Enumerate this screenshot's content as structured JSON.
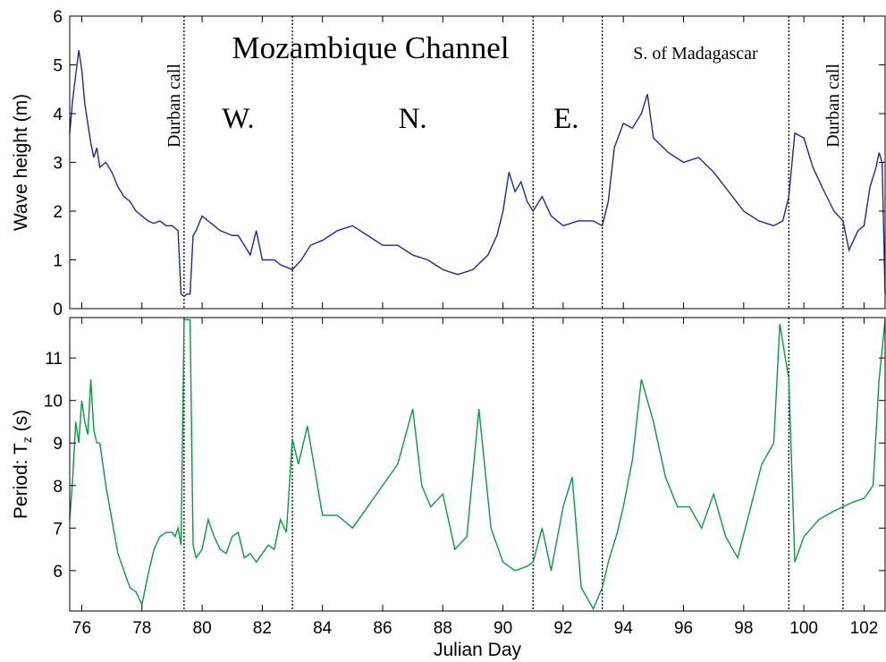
{
  "figure": {
    "xlabel": "Julian Day",
    "annotations": {
      "title": "Mozambique Channel",
      "w": "W.",
      "n": "N.",
      "e": "E.",
      "madagascar": "S. of Madagascar",
      "durban_left": "Durban call",
      "durban_right": "Durban call"
    }
  },
  "chart_data": [
    {
      "type": "line",
      "title": "",
      "xlabel": "",
      "ylabel": "Wave height (m)",
      "xlim": [
        75.6,
        102.7
      ],
      "ylim": [
        0,
        6
      ],
      "xticks": [
        76,
        78,
        80,
        82,
        84,
        86,
        88,
        90,
        92,
        94,
        96,
        98,
        100,
        102
      ],
      "yticks": [
        0,
        1,
        2,
        3,
        4,
        5,
        6
      ],
      "color": "#1f2a8f",
      "vlines": [
        79.4,
        83.0,
        91.0,
        93.3,
        99.5,
        101.3
      ],
      "series": [
        {
          "x": [
            75.6,
            75.7,
            75.8,
            75.9,
            76.0,
            76.1,
            76.2,
            76.3,
            76.4,
            76.5,
            76.6,
            76.8,
            77.0,
            77.2,
            77.4,
            77.6,
            77.8,
            78.0,
            78.2,
            78.4,
            78.6,
            78.8,
            79.0,
            79.2,
            79.3,
            79.4,
            79.5,
            79.6,
            79.7,
            79.8,
            80.0,
            80.2,
            80.4,
            80.6,
            80.8,
            81.0,
            81.2,
            81.4,
            81.6,
            81.8,
            82.0,
            82.2,
            82.4,
            82.6,
            82.8,
            83.0,
            83.3,
            83.6,
            84.0,
            84.5,
            85.0,
            85.5,
            86.0,
            86.5,
            87.0,
            87.5,
            88.0,
            88.5,
            89.0,
            89.5,
            89.8,
            90.0,
            90.2,
            90.4,
            90.6,
            90.8,
            91.0,
            91.3,
            91.6,
            92.0,
            92.5,
            93.0,
            93.3,
            93.5,
            93.7,
            94.0,
            94.3,
            94.6,
            94.8,
            95.0,
            95.5,
            96.0,
            96.5,
            97.0,
            97.5,
            98.0,
            98.5,
            99.0,
            99.3,
            99.5,
            99.7,
            100.0,
            100.3,
            100.6,
            101.0,
            101.3,
            101.5,
            101.8,
            102.0,
            102.2,
            102.4,
            102.5,
            102.6,
            102.7
          ],
          "values": [
            3.6,
            4.3,
            4.8,
            5.3,
            4.9,
            4.2,
            3.8,
            3.4,
            3.1,
            3.3,
            2.9,
            3.0,
            2.8,
            2.5,
            2.3,
            2.2,
            2.0,
            1.9,
            1.8,
            1.75,
            1.8,
            1.7,
            1.7,
            1.6,
            0.3,
            0.25,
            0.3,
            0.3,
            1.5,
            1.6,
            1.9,
            1.8,
            1.7,
            1.6,
            1.55,
            1.5,
            1.5,
            1.3,
            1.1,
            1.6,
            1.0,
            1.0,
            1.0,
            0.9,
            0.85,
            0.8,
            1.0,
            1.3,
            1.4,
            1.6,
            1.7,
            1.5,
            1.3,
            1.3,
            1.1,
            1.0,
            0.8,
            0.7,
            0.8,
            1.1,
            1.5,
            2.0,
            2.8,
            2.4,
            2.6,
            2.2,
            2.0,
            2.3,
            1.9,
            1.7,
            1.8,
            1.8,
            1.7,
            2.2,
            3.3,
            3.8,
            3.7,
            4.0,
            4.4,
            3.5,
            3.2,
            3.0,
            3.1,
            2.8,
            2.4,
            2.0,
            1.8,
            1.7,
            1.8,
            2.3,
            3.6,
            3.5,
            2.9,
            2.5,
            2.0,
            1.8,
            1.2,
            1.6,
            1.7,
            2.5,
            2.9,
            3.2,
            3.0,
            0.3
          ]
        }
      ]
    },
    {
      "type": "line",
      "title": "",
      "xlabel": "Julian Day",
      "ylabel": "Period: T",
      "ylabel_sub": "z",
      "ylabel_suffix": " (s)",
      "xlim": [
        75.6,
        102.7
      ],
      "ylim": [
        5.05,
        11.95
      ],
      "xticks": [
        76,
        78,
        80,
        82,
        84,
        86,
        88,
        90,
        92,
        94,
        96,
        98,
        100,
        102
      ],
      "yticks": [
        6,
        7,
        8,
        9,
        10,
        11
      ],
      "color": "#0a9a3e",
      "vlines": [
        79.4,
        83.0,
        91.0,
        93.3,
        99.5,
        101.3
      ],
      "series": [
        {
          "x": [
            75.6,
            75.7,
            75.8,
            75.9,
            76.0,
            76.1,
            76.2,
            76.3,
            76.4,
            76.5,
            76.6,
            76.7,
            76.8,
            77.0,
            77.2,
            77.4,
            77.6,
            77.8,
            78.0,
            78.2,
            78.4,
            78.6,
            78.8,
            79.0,
            79.1,
            79.2,
            79.3,
            79.4,
            79.45,
            79.6,
            79.7,
            79.8,
            80.0,
            80.2,
            80.4,
            80.6,
            80.8,
            81.0,
            81.2,
            81.4,
            81.6,
            81.8,
            82.0,
            82.2,
            82.4,
            82.6,
            82.8,
            83.0,
            83.2,
            83.5,
            84.0,
            84.5,
            85.0,
            85.5,
            86.0,
            86.5,
            87.0,
            87.3,
            87.6,
            88.0,
            88.4,
            88.8,
            89.2,
            89.6,
            90.0,
            90.4,
            90.8,
            91.0,
            91.3,
            91.6,
            92.0,
            92.3,
            92.6,
            93.0,
            93.3,
            93.5,
            93.8,
            94.0,
            94.3,
            94.6,
            95.0,
            95.4,
            95.8,
            96.2,
            96.6,
            97.0,
            97.4,
            97.8,
            98.2,
            98.6,
            99.0,
            99.2,
            99.5,
            99.7,
            100.0,
            100.5,
            101.0,
            101.3,
            101.6,
            102.0,
            102.3,
            102.5,
            102.7
          ],
          "values": [
            7.2,
            8.2,
            9.5,
            9.0,
            10.0,
            9.5,
            9.2,
            10.5,
            9.3,
            9.0,
            9.0,
            8.5,
            8.0,
            7.2,
            6.4,
            6.0,
            5.6,
            5.5,
            5.2,
            5.9,
            6.5,
            6.8,
            6.9,
            6.9,
            6.8,
            7.0,
            6.6,
            11.9,
            11.9,
            11.9,
            6.6,
            6.3,
            6.5,
            7.2,
            6.8,
            6.5,
            6.4,
            6.8,
            6.9,
            6.3,
            6.4,
            6.2,
            6.4,
            6.6,
            6.5,
            7.2,
            6.9,
            9.1,
            8.5,
            9.4,
            7.3,
            7.3,
            7.0,
            7.5,
            8.0,
            8.5,
            9.8,
            8.0,
            7.5,
            7.8,
            6.5,
            6.8,
            9.8,
            7.0,
            6.2,
            6.0,
            6.1,
            6.2,
            7.0,
            6.0,
            7.5,
            8.2,
            5.6,
            5.1,
            5.6,
            6.2,
            6.9,
            7.5,
            8.6,
            10.5,
            9.5,
            8.2,
            7.5,
            7.5,
            7.0,
            7.8,
            6.8,
            6.3,
            7.4,
            8.5,
            9.0,
            11.8,
            10.5,
            6.2,
            6.8,
            7.2,
            7.4,
            7.5,
            7.6,
            7.7,
            8.0,
            10.5,
            11.9
          ]
        }
      ]
    }
  ]
}
